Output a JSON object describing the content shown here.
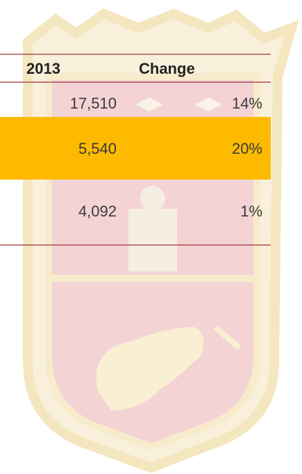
{
  "table": {
    "header": [
      "2013",
      "Change"
    ],
    "rows": [
      [
        "17,510",
        "14%"
      ],
      [
        "5,540",
        "20%"
      ],
      [
        "4,092",
        "1%"
      ]
    ]
  }
}
